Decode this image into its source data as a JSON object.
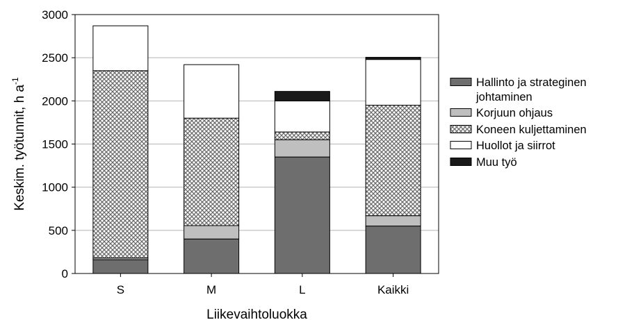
{
  "chart_data": {
    "type": "bar",
    "stacked": true,
    "categories": [
      "S",
      "M",
      "L",
      "Kaikki"
    ],
    "series": [
      {
        "name": "Hallinto ja strateginen johtaminen",
        "name_lines": [
          "Hallinto ja strateginen",
          "johtaminen"
        ],
        "values": [
          160,
          400,
          1350,
          550
        ],
        "color": "#6e6e6e",
        "pattern": "solid"
      },
      {
        "name": "Korjuun ohjaus",
        "name_lines": [
          "Korjuun ohjaus"
        ],
        "values": [
          20,
          155,
          200,
          120
        ],
        "color": "#bfbfbf",
        "pattern": "solid"
      },
      {
        "name": "Koneen kuljettaminen",
        "name_lines": [
          "Koneen kuljettaminen"
        ],
        "values": [
          2170,
          1245,
          90,
          1280
        ],
        "color": "#9a9a9a",
        "pattern": "crosshatch"
      },
      {
        "name": "Huollot ja siirrot",
        "name_lines": [
          "Huollot ja siirrot"
        ],
        "values": [
          520,
          620,
          360,
          530
        ],
        "color": "#ffffff",
        "pattern": "solid"
      },
      {
        "name": "Muu työ",
        "name_lines": [
          "Muu työ"
        ],
        "values": [
          0,
          0,
          110,
          25
        ],
        "color": "#1a1a1a",
        "pattern": "solid"
      }
    ],
    "title": "",
    "xlabel": "Liikevaihtoluokka",
    "ylabel_main": "Keskim. työtunnit, h a",
    "ylabel_sup": "-1",
    "ylim": [
      0,
      3000
    ],
    "yticks": [
      "0",
      "500",
      "1000",
      "1500",
      "2000",
      "2500",
      "3000"
    ],
    "grid": true,
    "legend_position": "right"
  }
}
